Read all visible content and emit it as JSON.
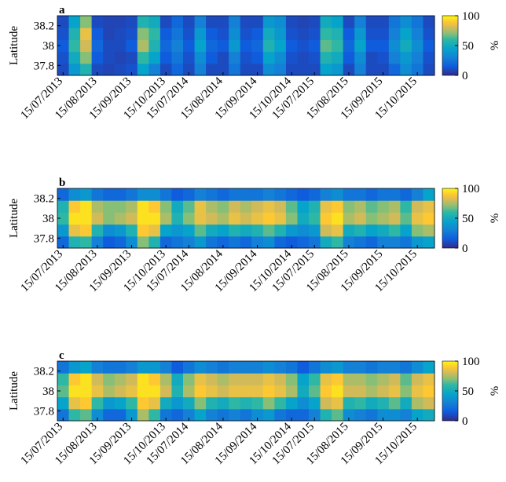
{
  "chart_data": [
    {
      "type": "heatmap",
      "title": "a",
      "ylabel": "Latitude",
      "colormap": "parula",
      "x": [
        "15/07/2013",
        null,
        null,
        "15/08/2013",
        null,
        null,
        "15/09/2013",
        null,
        null,
        "15/10/2013",
        null,
        "15/07/2014",
        null,
        null,
        "15/08/2014",
        null,
        null,
        "15/09/2014",
        null,
        null,
        "15/10/2014",
        null,
        "15/07/2015",
        null,
        null,
        "15/08/2015",
        null,
        null,
        "15/09/2015",
        null,
        null,
        "15/10/2015",
        null
      ],
      "y": [
        37.76,
        37.88,
        38.0,
        38.12,
        38.24
      ],
      "ylim": [
        37.7,
        38.3
      ],
      "yticks": [
        37.8,
        38,
        38.2
      ],
      "z": [
        [
          10,
          40,
          55,
          10,
          8,
          10,
          12,
          45,
          30,
          10,
          20,
          10,
          30,
          10,
          10,
          25,
          10,
          10,
          35,
          30,
          10,
          10,
          10,
          45,
          40,
          10,
          30,
          10,
          10,
          20,
          35,
          25,
          10
        ],
        [
          12,
          50,
          70,
          15,
          10,
          8,
          10,
          60,
          45,
          15,
          25,
          12,
          35,
          15,
          10,
          30,
          12,
          15,
          45,
          35,
          12,
          10,
          12,
          55,
          50,
          15,
          35,
          10,
          12,
          30,
          40,
          30,
          12
        ],
        [
          15,
          60,
          80,
          20,
          10,
          10,
          15,
          75,
          55,
          20,
          30,
          15,
          45,
          20,
          15,
          40,
          15,
          20,
          55,
          45,
          15,
          12,
          15,
          65,
          60,
          20,
          45,
          15,
          15,
          35,
          50,
          35,
          15
        ],
        [
          12,
          55,
          85,
          15,
          8,
          10,
          12,
          70,
          60,
          15,
          25,
          12,
          40,
          15,
          12,
          35,
          12,
          15,
          50,
          40,
          12,
          10,
          12,
          60,
          55,
          15,
          40,
          12,
          12,
          30,
          45,
          30,
          12
        ],
        [
          10,
          45,
          70,
          10,
          8,
          8,
          10,
          55,
          50,
          10,
          20,
          10,
          30,
          10,
          10,
          30,
          10,
          10,
          40,
          35,
          10,
          8,
          10,
          50,
          45,
          10,
          30,
          10,
          10,
          25,
          35,
          25,
          10
        ]
      ],
      "colorbar": {
        "label": "%",
        "lim": [
          0,
          100
        ],
        "ticks": [
          0,
          50,
          100
        ]
      }
    },
    {
      "type": "heatmap",
      "title": "b",
      "ylabel": "Latitude",
      "colormap": "parula",
      "x": [
        "15/07/2013",
        null,
        null,
        "15/08/2013",
        null,
        null,
        "15/09/2013",
        null,
        null,
        "15/10/2013",
        null,
        "15/07/2014",
        null,
        null,
        "15/08/2014",
        null,
        null,
        "15/09/2014",
        null,
        null,
        "15/10/2014",
        null,
        "15/07/2015",
        null,
        null,
        "15/08/2015",
        null,
        null,
        "15/09/2015",
        null,
        null,
        "15/10/2015",
        null
      ],
      "y": [
        37.76,
        37.88,
        38.0,
        38.12,
        38.24
      ],
      "ylim": [
        37.7,
        38.3
      ],
      "yticks": [
        37.8,
        38,
        38.2
      ],
      "z": [
        [
          20,
          55,
          60,
          30,
          15,
          20,
          35,
          70,
          55,
          20,
          25,
          30,
          40,
          25,
          20,
          25,
          20,
          30,
          35,
          20,
          15,
          20,
          25,
          50,
          60,
          30,
          25,
          20,
          30,
          30,
          25,
          40,
          45
        ],
        [
          40,
          85,
          90,
          55,
          35,
          40,
          55,
          90,
          85,
          45,
          40,
          45,
          65,
          50,
          45,
          55,
          50,
          55,
          65,
          55,
          40,
          35,
          40,
          80,
          85,
          50,
          55,
          45,
          50,
          60,
          45,
          70,
          75
        ],
        [
          60,
          95,
          95,
          80,
          70,
          75,
          80,
          95,
          95,
          75,
          55,
          70,
          85,
          80,
          75,
          85,
          80,
          85,
          90,
          85,
          70,
          50,
          60,
          90,
          95,
          75,
          80,
          70,
          75,
          80,
          65,
          85,
          90
        ],
        [
          55,
          90,
          95,
          75,
          70,
          70,
          75,
          95,
          90,
          70,
          50,
          65,
          85,
          75,
          70,
          80,
          75,
          80,
          85,
          80,
          65,
          45,
          55,
          85,
          90,
          70,
          75,
          65,
          70,
          75,
          60,
          80,
          85
        ],
        [
          20,
          35,
          40,
          25,
          20,
          20,
          25,
          35,
          35,
          25,
          15,
          20,
          30,
          25,
          20,
          25,
          25,
          25,
          30,
          25,
          20,
          15,
          20,
          30,
          35,
          25,
          25,
          20,
          25,
          25,
          20,
          30,
          45
        ]
      ],
      "colorbar": {
        "label": "%",
        "lim": [
          0,
          100
        ],
        "ticks": [
          0,
          50,
          100
        ]
      }
    },
    {
      "type": "heatmap",
      "title": "c",
      "ylabel": "Latitude",
      "colormap": "parula",
      "x": [
        "15/07/2013",
        null,
        null,
        "15/08/2013",
        null,
        null,
        "15/09/2013",
        null,
        null,
        "15/10/2013",
        null,
        "15/07/2014",
        null,
        null,
        "15/08/2014",
        null,
        null,
        "15/09/2014",
        null,
        null,
        "15/10/2014",
        null,
        "15/07/2015",
        null,
        null,
        "15/08/2015",
        null,
        null,
        "15/09/2015",
        null,
        null,
        "15/10/2015",
        null
      ],
      "y": [
        37.76,
        37.88,
        38.0,
        38.12,
        38.24
      ],
      "ylim": [
        37.7,
        38.3
      ],
      "yticks": [
        37.8,
        38,
        38.2
      ],
      "z": [
        [
          25,
          60,
          65,
          35,
          20,
          20,
          40,
          75,
          60,
          25,
          20,
          30,
          45,
          30,
          25,
          30,
          25,
          35,
          40,
          25,
          20,
          20,
          30,
          55,
          65,
          35,
          30,
          25,
          35,
          35,
          30,
          45,
          50
        ],
        [
          45,
          85,
          90,
          60,
          40,
          45,
          60,
          90,
          85,
          50,
          40,
          50,
          70,
          55,
          50,
          60,
          55,
          60,
          70,
          60,
          45,
          35,
          45,
          80,
          85,
          55,
          60,
          50,
          55,
          65,
          50,
          75,
          80
        ],
        [
          65,
          95,
          95,
          85,
          75,
          80,
          85,
          95,
          95,
          80,
          55,
          75,
          90,
          85,
          80,
          85,
          85,
          85,
          90,
          85,
          75,
          50,
          65,
          90,
          95,
          80,
          80,
          75,
          80,
          85,
          70,
          85,
          90
        ],
        [
          60,
          90,
          95,
          80,
          70,
          75,
          80,
          95,
          90,
          75,
          50,
          70,
          85,
          80,
          75,
          80,
          80,
          80,
          85,
          80,
          70,
          45,
          60,
          85,
          90,
          75,
          75,
          70,
          75,
          80,
          65,
          80,
          85
        ],
        [
          25,
          40,
          45,
          30,
          25,
          25,
          30,
          40,
          40,
          30,
          15,
          25,
          35,
          30,
          25,
          30,
          30,
          30,
          35,
          30,
          25,
          15,
          25,
          35,
          40,
          30,
          30,
          25,
          30,
          30,
          25,
          35,
          45
        ]
      ],
      "colorbar": {
        "label": "%",
        "lim": [
          0,
          100
        ],
        "ticks": [
          0,
          50,
          100
        ]
      }
    }
  ]
}
